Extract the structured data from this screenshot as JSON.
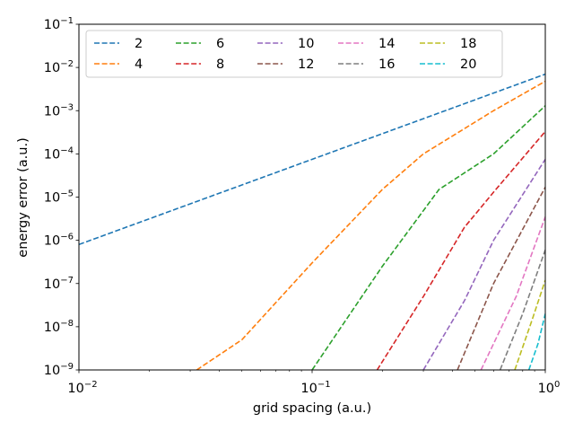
{
  "chart_data": {
    "type": "line",
    "title": "",
    "xlabel": "grid spacing (a.u.)",
    "ylabel": "energy error (a.u.)",
    "xscale": "log",
    "yscale": "log",
    "xlim": [
      0.01,
      1
    ],
    "ylim": [
      1e-09,
      0.1
    ],
    "grid": false,
    "legend": {
      "placement": "top-left",
      "columns": 5,
      "line_style": "dashed"
    },
    "x_ticks": [
      {
        "value": 0.01,
        "base": "10",
        "exp": "−2"
      },
      {
        "value": 0.1,
        "base": "10",
        "exp": "−1"
      },
      {
        "value": 1,
        "base": "10",
        "exp": "0"
      }
    ],
    "y_ticks": [
      {
        "value": 1e-09,
        "base": "10",
        "exp": "−9"
      },
      {
        "value": 1e-08,
        "base": "10",
        "exp": "−8"
      },
      {
        "value": 1e-07,
        "base": "10",
        "exp": "−7"
      },
      {
        "value": 1e-06,
        "base": "10",
        "exp": "−6"
      },
      {
        "value": 1e-05,
        "base": "10",
        "exp": "−5"
      },
      {
        "value": 0.0001,
        "base": "10",
        "exp": "−4"
      },
      {
        "value": 0.001,
        "base": "10",
        "exp": "−3"
      },
      {
        "value": 0.01,
        "base": "10",
        "exp": "−2"
      },
      {
        "value": 0.1,
        "base": "10",
        "exp": "−1"
      }
    ],
    "series": [
      {
        "name": "2",
        "color": "#1f77b4",
        "points": [
          [
            0.01,
            8e-07
          ],
          [
            1,
            0.007
          ]
        ]
      },
      {
        "name": "4",
        "color": "#ff7f0e",
        "points": [
          [
            0.032,
            1e-09
          ],
          [
            0.05,
            5e-09
          ],
          [
            0.1,
            3e-07
          ],
          [
            0.2,
            1.5e-05
          ],
          [
            0.3,
            0.0001
          ],
          [
            0.6,
            0.001
          ],
          [
            1,
            0.0048
          ]
        ]
      },
      {
        "name": "6",
        "color": "#2ca02c",
        "points": [
          [
            0.1,
            1e-09
          ],
          [
            0.2,
            2.5e-07
          ],
          [
            0.35,
            1.5e-05
          ],
          [
            0.6,
            0.0001
          ],
          [
            1,
            0.0013
          ]
        ]
      },
      {
        "name": "8",
        "color": "#d62728",
        "points": [
          [
            0.19,
            1e-09
          ],
          [
            0.3,
            5e-08
          ],
          [
            0.45,
            2e-06
          ],
          [
            0.6,
            1.3e-05
          ],
          [
            1,
            0.00033
          ]
        ]
      },
      {
        "name": "10",
        "color": "#9467bd",
        "points": [
          [
            0.3,
            1e-09
          ],
          [
            0.45,
            4e-08
          ],
          [
            0.6,
            1e-06
          ],
          [
            1,
            7.5e-05
          ]
        ]
      },
      {
        "name": "12",
        "color": "#8c564b",
        "points": [
          [
            0.42,
            1e-09
          ],
          [
            0.6,
            1e-07
          ],
          [
            1,
            1.7e-05
          ]
        ]
      },
      {
        "name": "14",
        "color": "#e377c2",
        "points": [
          [
            0.53,
            1e-09
          ],
          [
            0.75,
            5e-08
          ],
          [
            1,
            3.5e-06
          ]
        ]
      },
      {
        "name": "16",
        "color": "#7f7f7f",
        "points": [
          [
            0.64,
            1e-09
          ],
          [
            0.8,
            2e-08
          ],
          [
            1,
            6e-07
          ]
        ]
      },
      {
        "name": "18",
        "color": "#bcbd22",
        "points": [
          [
            0.74,
            1e-09
          ],
          [
            0.88,
            1.5e-08
          ],
          [
            1,
            1.2e-07
          ]
        ]
      },
      {
        "name": "20",
        "color": "#17becf",
        "points": [
          [
            0.85,
            1e-09
          ],
          [
            0.93,
            4e-09
          ],
          [
            1,
            2e-08
          ]
        ]
      }
    ]
  }
}
